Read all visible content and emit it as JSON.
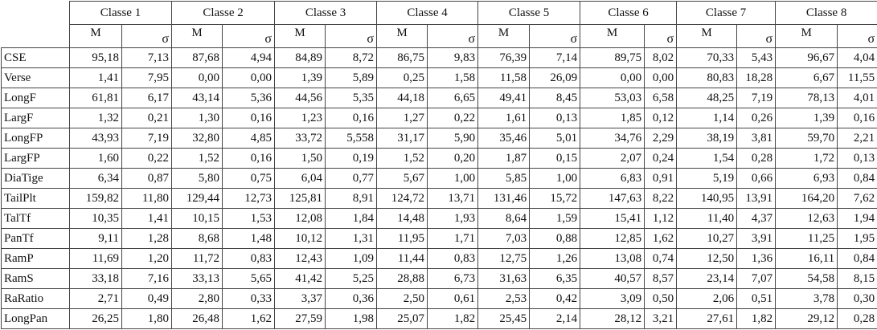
{
  "table": {
    "classes": [
      "Classe 1",
      "Classe 2",
      "Classe 3",
      "Classe 4",
      "Classe 5",
      "Classe 6",
      "Classe 7",
      "Classe 8"
    ],
    "stats": [
      "M",
      "σ"
    ],
    "rows": [
      {
        "label": "CSE",
        "values": [
          "95,18",
          "7,13",
          "87,68",
          "4,94",
          "84,89",
          "8,72",
          "86,75",
          "9,83",
          "76,39",
          "7,14",
          "89,75",
          "8,02",
          "70,33",
          "5,43",
          "96,67",
          "4,04"
        ]
      },
      {
        "label": "Verse",
        "values": [
          "1,41",
          "7,95",
          "0,00",
          "0,00",
          "1,39",
          "5,89",
          "0,25",
          "1,58",
          "11,58",
          "26,09",
          "0,00",
          "0,00",
          "80,83",
          "18,28",
          "6,67",
          "11,55"
        ]
      },
      {
        "label": "LongF",
        "values": [
          "61,81",
          "6,17",
          "43,14",
          "5,36",
          "44,56",
          "5,35",
          "44,18",
          "6,65",
          "49,41",
          "8,45",
          "53,03",
          "6,58",
          "48,25",
          "7,19",
          "78,13",
          "4,01"
        ]
      },
      {
        "label": "LargF",
        "values": [
          "1,32",
          "0,21",
          "1,30",
          "0,16",
          "1,23",
          "0,16",
          "1,27",
          "0,22",
          "1,61",
          "0,13",
          "1,85",
          "0,12",
          "1,14",
          "0,26",
          "1,39",
          "0,16"
        ]
      },
      {
        "label": "LongFP",
        "values": [
          "43,93",
          "7,19",
          "32,80",
          "4,85",
          "33,72",
          "5,558",
          "31,17",
          "5,90",
          "35,46",
          "5,01",
          "34,76",
          "2,29",
          "38,19",
          "3,81",
          "59,70",
          "2,21"
        ]
      },
      {
        "label": "LargFP",
        "values": [
          "1,60",
          "0,22",
          "1,52",
          "0,16",
          "1,50",
          "0,19",
          "1,52",
          "0,20",
          "1,87",
          "0,15",
          "2,07",
          "0,24",
          "1,54",
          "0,28",
          "1,72",
          "0,13"
        ]
      },
      {
        "label": "DiaTige",
        "values": [
          "6,34",
          "0,87",
          "5,80",
          "0,75",
          "6,04",
          "0,77",
          "5,67",
          "1,00",
          "5,85",
          "1,00",
          "6,83",
          "0,91",
          "5,19",
          "0,66",
          "6,93",
          "0,84"
        ]
      },
      {
        "label": "TailPlt",
        "values": [
          "159,82",
          "11,80",
          "129,44",
          "12,73",
          "125,81",
          "8,91",
          "124,72",
          "13,71",
          "131,46",
          "15,72",
          "147,63",
          "8,22",
          "140,95",
          "13,91",
          "164,20",
          "7,62"
        ]
      },
      {
        "label": "TalTf",
        "values": [
          "10,35",
          "1,41",
          "10,15",
          "1,53",
          "12,08",
          "1,84",
          "14,48",
          "1,93",
          "8,64",
          "1,59",
          "15,41",
          "1,12",
          "11,40",
          "4,37",
          "12,63",
          "1,94"
        ]
      },
      {
        "label": "PanTf",
        "values": [
          "9,11",
          "1,28",
          "8,68",
          "1,48",
          "10,12",
          "1,31",
          "11,95",
          "1,71",
          "7,03",
          "0,88",
          "12,85",
          "1,62",
          "10,27",
          "3,91",
          "11,25",
          "1,95"
        ]
      },
      {
        "label": "RamP",
        "values": [
          "11,69",
          "1,20",
          "11,72",
          "0,83",
          "12,43",
          "1,09",
          "11,44",
          "0,83",
          "12,75",
          "1,26",
          "13,08",
          "0,74",
          "12,50",
          "1,36",
          "16,11",
          "0,84"
        ]
      },
      {
        "label": "RamS",
        "values": [
          "33,18",
          "7,16",
          "33,13",
          "5,65",
          "41,42",
          "5,25",
          "28,88",
          "6,73",
          "31,63",
          "6,35",
          "40,57",
          "8,57",
          "23,14",
          "7,07",
          "54,58",
          "8,15"
        ]
      },
      {
        "label": "RaRatio",
        "values": [
          "2,71",
          "0,49",
          "2,80",
          "0,33",
          "3,37",
          "0,36",
          "2,50",
          "0,61",
          "2,53",
          "0,42",
          "3,09",
          "0,50",
          "2,06",
          "0,51",
          "3,78",
          "0,30"
        ]
      },
      {
        "label": "LongPan",
        "values": [
          "26,25",
          "1,80",
          "26,48",
          "1,62",
          "27,59",
          "1,98",
          "25,07",
          "1,82",
          "25,45",
          "2,14",
          "28,12",
          "3,21",
          "27,61",
          "1,82",
          "29,12",
          "0,28"
        ]
      }
    ]
  }
}
